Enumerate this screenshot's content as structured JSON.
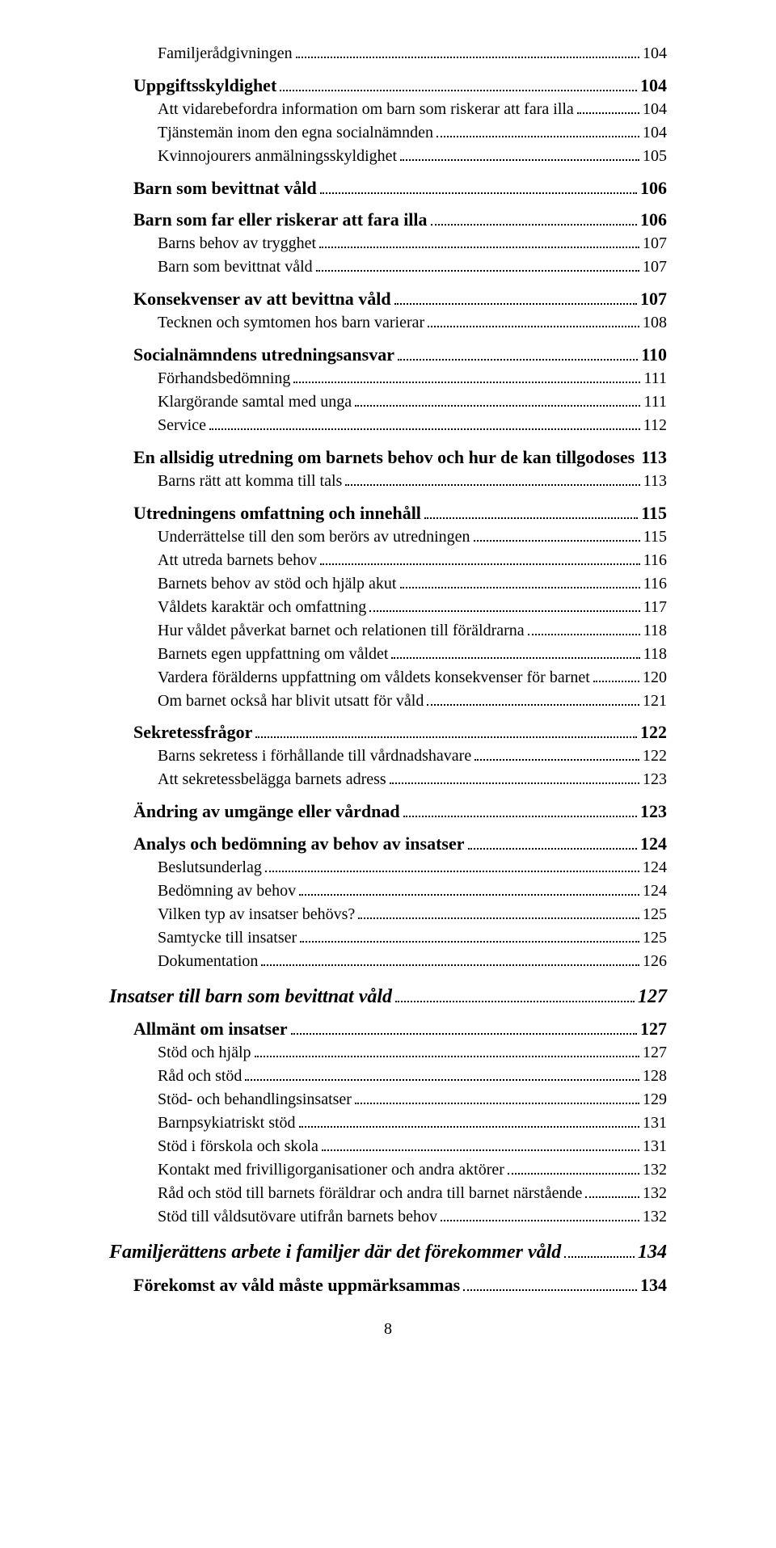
{
  "page_number": "8",
  "toc": [
    {
      "level": 3,
      "label": "Familjerådgivningen",
      "page": "104"
    },
    {
      "level": 2,
      "label": "Uppgiftsskyldighet",
      "page": "104"
    },
    {
      "level": 3,
      "label": "Att vidarebefordra information om barn som riskerar att fara illa",
      "page": "104"
    },
    {
      "level": 3,
      "label": "Tjänstemän inom den egna socialnämnden",
      "page": "104"
    },
    {
      "level": 3,
      "label": "Kvinnojourers anmälningsskyldighet",
      "page": "105"
    },
    {
      "level": 2,
      "label": "Barn som bevittnat våld",
      "page": "106"
    },
    {
      "level": 2,
      "label": "Barn som far eller riskerar att fara illa",
      "page": "106"
    },
    {
      "level": 3,
      "label": "Barns behov av trygghet",
      "page": "107"
    },
    {
      "level": 3,
      "label": "Barn som bevittnat våld",
      "page": "107"
    },
    {
      "level": 2,
      "label": "Konsekvenser av att bevittna våld",
      "page": "107"
    },
    {
      "level": 3,
      "label": "Tecknen och symtomen hos barn varierar",
      "page": "108"
    },
    {
      "level": 2,
      "label": "Socialnämndens utredningsansvar",
      "page": "110"
    },
    {
      "level": 3,
      "label": "Förhandsbedömning",
      "page": "111"
    },
    {
      "level": 3,
      "label": "Klargörande samtal med unga",
      "page": "111"
    },
    {
      "level": 3,
      "label": "Service",
      "page": "112"
    },
    {
      "level": 2,
      "label": "En allsidig utredning om barnets behov och hur de kan tillgodoses",
      "page": "113"
    },
    {
      "level": 3,
      "label": "Barns rätt att komma till tals",
      "page": "113"
    },
    {
      "level": 2,
      "label": "Utredningens omfattning och innehåll",
      "page": "115"
    },
    {
      "level": 3,
      "label": "Underrättelse till den som berörs av utredningen",
      "page": "115"
    },
    {
      "level": 3,
      "label": "Att utreda barnets behov",
      "page": "116"
    },
    {
      "level": 3,
      "label": "Barnets behov av stöd och hjälp akut",
      "page": "116"
    },
    {
      "level": 3,
      "label": "Våldets karaktär och omfattning",
      "page": "117"
    },
    {
      "level": 3,
      "label": "Hur våldet påverkat barnet och relationen till föräldrarna",
      "page": "118"
    },
    {
      "level": 3,
      "label": "Barnets egen uppfattning om våldet",
      "page": "118"
    },
    {
      "level": 3,
      "label": "Vardera förälderns uppfattning om våldets konsekvenser för barnet",
      "page": "120"
    },
    {
      "level": 3,
      "label": "Om barnet också har blivit utsatt för våld",
      "page": "121"
    },
    {
      "level": 2,
      "label": "Sekretessfrågor",
      "page": "122"
    },
    {
      "level": 3,
      "label": "Barns sekretess i förhållande till vårdnadshavare",
      "page": "122"
    },
    {
      "level": 3,
      "label": "Att sekretessbelägga barnets adress",
      "page": "123"
    },
    {
      "level": 2,
      "label": "Ändring av umgänge eller vårdnad",
      "page": "123"
    },
    {
      "level": 2,
      "label": "Analys och bedömning av behov av insatser",
      "page": "124"
    },
    {
      "level": 3,
      "label": "Beslutsunderlag",
      "page": "124"
    },
    {
      "level": 3,
      "label": "Bedömning av behov",
      "page": "124"
    },
    {
      "level": 3,
      "label": "Vilken typ av insatser behövs?",
      "page": "125"
    },
    {
      "level": 3,
      "label": "Samtycke till insatser",
      "page": "125"
    },
    {
      "level": 3,
      "label": "Dokumentation",
      "page": "126"
    },
    {
      "level": 1,
      "label": "Insatser till barn som bevittnat våld",
      "page": "127"
    },
    {
      "level": 2,
      "label": "Allmänt om insatser",
      "page": "127"
    },
    {
      "level": 3,
      "label": "Stöd och hjälp",
      "page": "127"
    },
    {
      "level": 3,
      "label": "Råd och stöd",
      "page": "128"
    },
    {
      "level": 3,
      "label": "Stöd- och behandlingsinsatser",
      "page": "129"
    },
    {
      "level": 3,
      "label": "Barnpsykiatriskt stöd",
      "page": "131"
    },
    {
      "level": 3,
      "label": "Stöd i förskola och skola",
      "page": "131"
    },
    {
      "level": 3,
      "label": "Kontakt med frivilligorganisationer och andra aktörer",
      "page": "132"
    },
    {
      "level": 3,
      "label": "Råd och stöd till barnets föräldrar och andra till barnet närstående",
      "page": "132"
    },
    {
      "level": 3,
      "label": "Stöd till våldsutövare utifrån barnets behov",
      "page": "132"
    },
    {
      "level": 1,
      "label": "Familjerättens arbete i familjer där det förekommer våld",
      "page": "134"
    },
    {
      "level": 2,
      "label": "Förekomst av våld måste uppmärksammas",
      "page": "134"
    }
  ]
}
